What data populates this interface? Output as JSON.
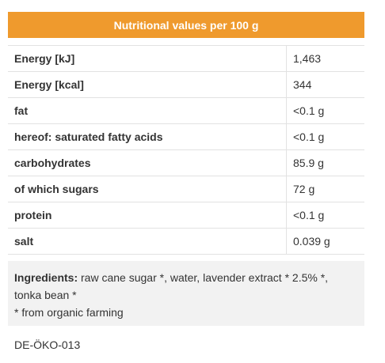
{
  "header": {
    "title": "Nutritional values per 100 g"
  },
  "table": {
    "rows": [
      [
        "Energy [kJ]",
        "1,463"
      ],
      [
        "Energy [kcal]",
        "344"
      ],
      [
        "fat",
        "<0.1 g"
      ],
      [
        "hereof: saturated fatty acids",
        "<0.1 g"
      ],
      [
        "carbohydrates",
        "85.9 g"
      ],
      [
        "of which sugars",
        "72 g"
      ],
      [
        "protein",
        "<0.1 g"
      ],
      [
        "salt",
        "0.039 g"
      ]
    ]
  },
  "ingredients": {
    "label": "Ingredients:",
    "text": "raw cane sugar *, water, lavender extract * 2.5% *, tonka bean *",
    "note": "* from organic farming"
  },
  "certification": "DE-ÖKO-013"
}
